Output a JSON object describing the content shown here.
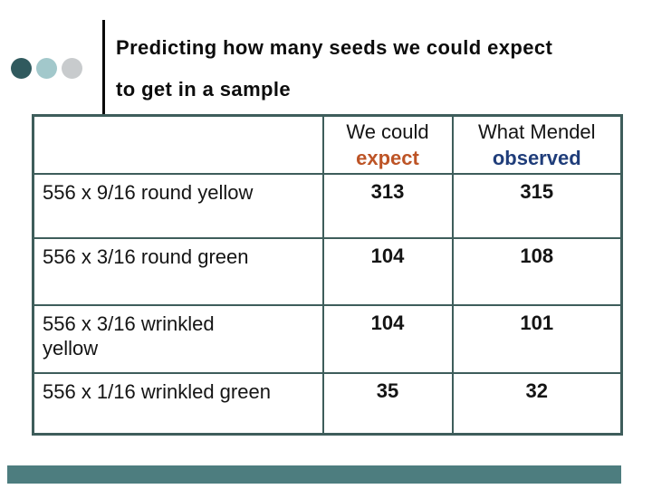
{
  "slide": {
    "title_line1": "Predicting how many seeds we could expect",
    "title_line2": "to get in a sample",
    "colors": {
      "accent_dot_dark": "#305a5e",
      "accent_dot_light": "#a2c8cb",
      "accent_dot_gray": "#c8cbcd",
      "table_border": "#3e5d5b",
      "expect_orange": "#bd5426",
      "observed_blue": "#1f3d7a",
      "bottom_bar_teal": "#4d7d7f",
      "title_black": "#0c0c0c"
    }
  },
  "table": {
    "header": {
      "expect_line1": "We could",
      "expect_line2": "expect",
      "observed_line1": "What Mendel",
      "observed_line2": "observed"
    },
    "rows": [
      {
        "label": "556 x 9/16 round yellow",
        "expect": "313",
        "observed": "315"
      },
      {
        "label": "556 x 3/16 round green",
        "expect": "104",
        "observed": "108"
      },
      {
        "label": "556 x 3/16 wrinkled\nyellow",
        "expect": "104",
        "observed": "101"
      },
      {
        "label": "556 x 1/16 wrinkled green",
        "expect": "35",
        "observed": "32"
      }
    ]
  },
  "chart_data": {
    "type": "table",
    "title": "Predicting how many seeds we could expect to get in a sample",
    "categories": [
      "556 x 9/16 round yellow",
      "556 x 3/16 round green",
      "556 x 3/16 wrinkled yellow",
      "556 x 1/16 wrinkled green"
    ],
    "series": [
      {
        "name": "We could expect",
        "values": [
          313,
          104,
          104,
          35
        ]
      },
      {
        "name": "What Mendel observed",
        "values": [
          315,
          108,
          101,
          32
        ]
      }
    ]
  }
}
